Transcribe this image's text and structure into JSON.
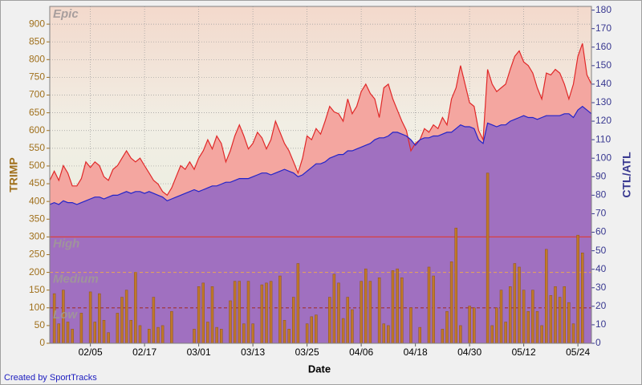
{
  "chart_data": {
    "type": "bar",
    "x_label": "Date",
    "y_label": "TRIMP",
    "y2_label": "CTL/ATL",
    "credit": "Created by SportTracks",
    "categories": [
      null,
      null,
      null,
      null,
      null,
      null,
      null,
      null,
      null,
      "02/05",
      null,
      null,
      null,
      null,
      null,
      null,
      null,
      null,
      null,
      null,
      null,
      "02/17",
      null,
      null,
      null,
      null,
      null,
      null,
      null,
      null,
      null,
      null,
      null,
      "03/01",
      null,
      null,
      null,
      null,
      null,
      null,
      null,
      null,
      null,
      null,
      null,
      "03/13",
      null,
      null,
      null,
      null,
      null,
      null,
      null,
      null,
      null,
      null,
      null,
      "03/25",
      null,
      null,
      null,
      null,
      null,
      null,
      null,
      null,
      null,
      null,
      null,
      "04/06",
      null,
      null,
      null,
      null,
      null,
      null,
      null,
      null,
      null,
      null,
      null,
      "04/18",
      null,
      null,
      null,
      null,
      null,
      null,
      null,
      null,
      null,
      null,
      null,
      "04/30",
      null,
      null,
      null,
      null,
      null,
      null,
      null,
      null,
      null,
      null,
      null,
      "05/12",
      null,
      null,
      null,
      null,
      null,
      null,
      null,
      null,
      null,
      null,
      null,
      "05/24",
      null,
      null,
      null
    ],
    "series": [
      {
        "type": "bar",
        "color": "#c0782a",
        "values": [
          0,
          140,
          55,
          150,
          60,
          40,
          0,
          85,
          0,
          145,
          60,
          140,
          65,
          30,
          0,
          85,
          130,
          150,
          65,
          200,
          50,
          0,
          40,
          130,
          45,
          50,
          0,
          90,
          0,
          0,
          0,
          0,
          40,
          160,
          170,
          60,
          160,
          45,
          40,
          0,
          120,
          175,
          175,
          55,
          175,
          55,
          0,
          165,
          170,
          175,
          0,
          190,
          65,
          40,
          130,
          225,
          0,
          55,
          75,
          80,
          0,
          0,
          130,
          195,
          170,
          70,
          130,
          95,
          0,
          175,
          210,
          175,
          0,
          185,
          55,
          50,
          205,
          210,
          185,
          0,
          100,
          0,
          45,
          0,
          215,
          190,
          0,
          40,
          90,
          230,
          325,
          50,
          0,
          105,
          100,
          0,
          0,
          480,
          50,
          100,
          150,
          60,
          160,
          225,
          215,
          150,
          90,
          150,
          90,
          50,
          265,
          135,
          160,
          130,
          160,
          115,
          55,
          305,
          255,
          0,
          0
        ]
      },
      {
        "type": "area",
        "axis": "y2",
        "color": "#e02828",
        "fill": "#f4a6a0",
        "values": [
          88,
          93,
          88,
          96,
          92,
          85,
          85,
          89,
          98,
          95,
          98,
          96,
          90,
          88,
          94,
          96,
          100,
          104,
          100,
          98,
          100,
          96,
          92,
          88,
          86,
          82,
          80,
          84,
          90,
          96,
          94,
          98,
          94,
          100,
          104,
          110,
          105,
          112,
          108,
          98,
          104,
          112,
          118,
          112,
          105,
          108,
          114,
          111,
          105,
          110,
          120,
          114,
          108,
          104,
          98,
          92,
          100,
          112,
          110,
          116,
          113,
          120,
          128,
          125,
          124,
          120,
          132,
          124,
          128,
          136,
          140,
          135,
          132,
          122,
          138,
          140,
          132,
          126,
          120,
          115,
          104,
          108,
          110,
          116,
          114,
          118,
          116,
          122,
          118,
          132,
          138,
          150,
          140,
          130,
          128,
          115,
          110,
          148,
          140,
          136,
          138,
          140,
          148,
          155,
          158,
          152,
          150,
          146,
          138,
          132,
          146,
          145,
          148,
          146,
          140,
          132,
          140,
          155,
          162,
          145,
          140
        ]
      },
      {
        "type": "area",
        "axis": "y2",
        "color": "#2424c8",
        "fill": "#a070c0",
        "values": [
          75,
          76,
          75,
          77,
          76,
          76,
          75,
          76,
          77,
          78,
          79,
          79,
          78,
          79,
          80,
          80,
          81,
          82,
          81,
          82,
          82,
          81,
          82,
          81,
          80,
          79,
          77,
          78,
          79,
          80,
          81,
          82,
          83,
          82,
          83,
          84,
          85,
          85,
          86,
          87,
          87,
          88,
          89,
          89,
          89,
          90,
          91,
          92,
          92,
          91,
          92,
          93,
          94,
          93,
          92,
          90,
          91,
          93,
          95,
          97,
          97,
          98,
          100,
          101,
          102,
          102,
          104,
          104,
          105,
          106,
          107,
          108,
          110,
          111,
          111,
          112,
          114,
          114,
          113,
          112,
          110,
          107,
          110,
          111,
          111,
          112,
          112,
          113,
          114,
          114,
          116,
          118,
          117,
          117,
          116,
          110,
          108,
          119,
          118,
          117,
          118,
          118,
          120,
          121,
          122,
          123,
          122,
          122,
          121,
          122,
          123,
          123,
          123,
          123,
          124,
          124,
          122,
          126,
          128,
          126,
          124
        ]
      }
    ],
    "zones": [
      {
        "name": "Epic"
      },
      {
        "name": "High",
        "value": 300,
        "color": "#d84040",
        "dash": false
      },
      {
        "name": "Medium",
        "value": 200,
        "color": "#e0a060",
        "dash": true
      },
      {
        "name": "Low",
        "value": 100,
        "color": "#a03030",
        "dash": true
      }
    ],
    "ylim": [
      0,
      950
    ],
    "yticks": [
      0,
      50,
      100,
      150,
      200,
      250,
      300,
      350,
      400,
      450,
      500,
      550,
      600,
      650,
      700,
      750,
      800,
      850,
      900
    ],
    "y2lim": [
      0,
      182
    ],
    "y2ticks": [
      0,
      10,
      20,
      30,
      40,
      50,
      60,
      70,
      80,
      90,
      100,
      110,
      120,
      130,
      140,
      150,
      160,
      170,
      180
    ],
    "grid": true,
    "y_color": "#a0701c",
    "y2_color": "#383890"
  }
}
